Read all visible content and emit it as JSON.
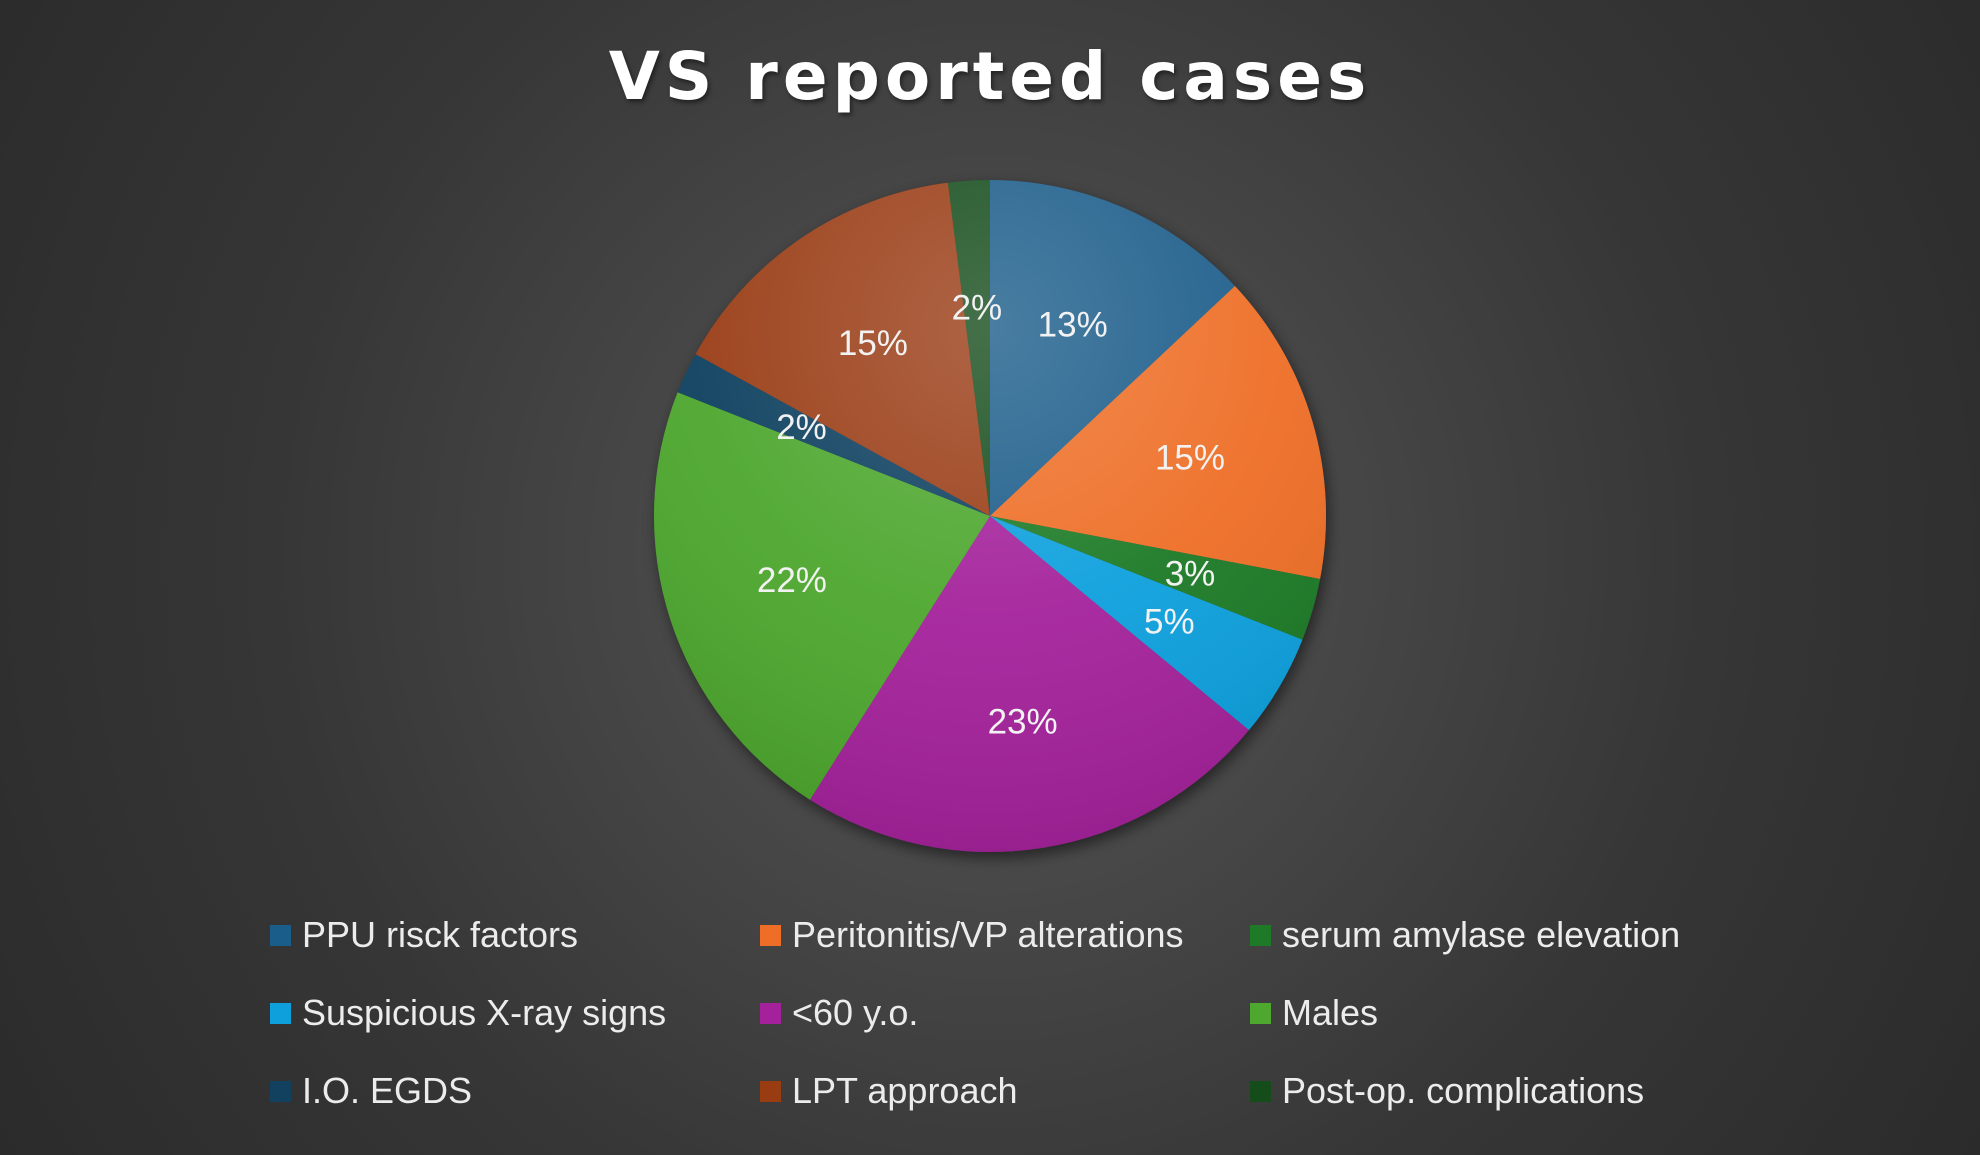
{
  "chart_data": {
    "type": "pie",
    "title": "VS reported cases",
    "legend_position": "bottom",
    "slices": [
      {
        "label": "PPU risck factors",
        "value": 13,
        "data_label": "13%",
        "color": "#1a5d8a"
      },
      {
        "label": "Peritonitis/VP alterations",
        "value": 15,
        "data_label": "15%",
        "color": "#ee6e27"
      },
      {
        "label": "serum amylase elevation",
        "value": 3,
        "data_label": "3%",
        "color": "#1f7a28"
      },
      {
        "label": "Suspicious X-ray signs",
        "value": 5,
        "data_label": "5%",
        "color": "#0ea0dd"
      },
      {
        "label": "<60 y.o.",
        "value": 23,
        "data_label": "23%",
        "color": "#a4219b"
      },
      {
        "label": "Males",
        "value": 22,
        "data_label": "22%",
        "color": "#4ea72e"
      },
      {
        "label": "I.O. EGDS",
        "value": 2,
        "data_label": "2%",
        "color": "#11415f"
      },
      {
        "label": "LPT approach",
        "value": 15,
        "data_label": "15%",
        "color": "#9a3c12"
      },
      {
        "label": "Post-op. complications",
        "value": 2,
        "data_label": "2%",
        "color": "#144d1a"
      }
    ]
  }
}
